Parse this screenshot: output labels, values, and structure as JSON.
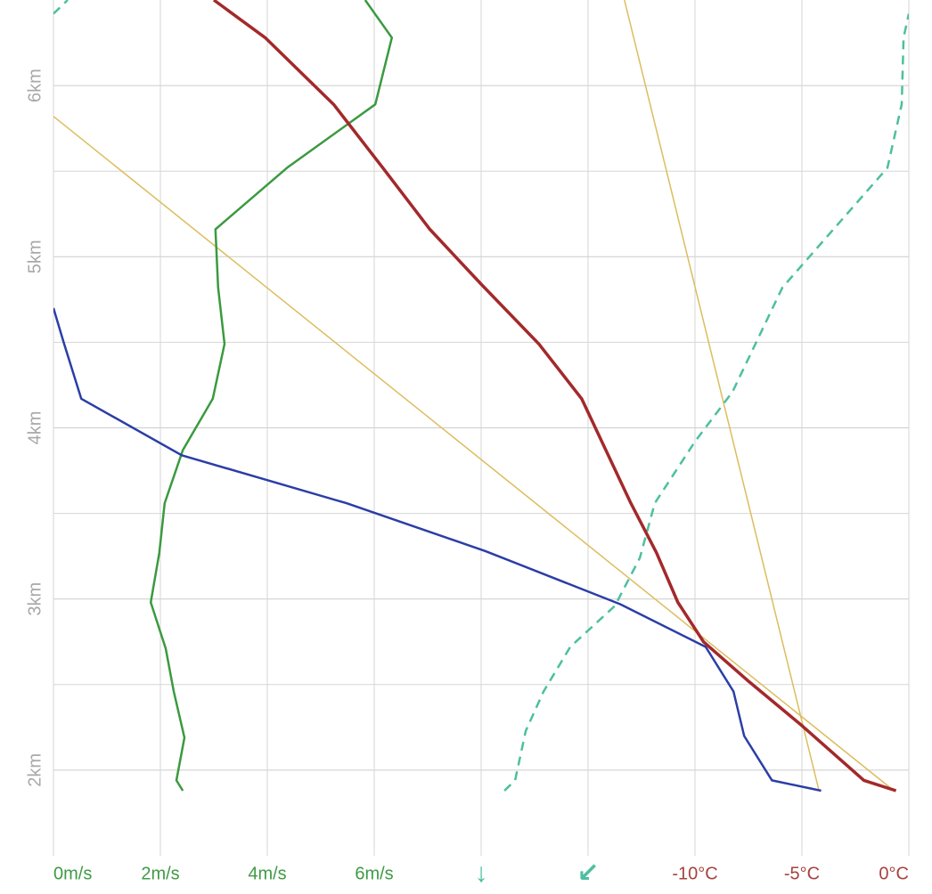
{
  "chart_data": {
    "type": "line",
    "ylim": [
      1.5,
      6.5
    ],
    "yticks": [
      {
        "value": 2,
        "label": "2km"
      },
      {
        "value": 3,
        "label": "3km"
      },
      {
        "value": 4,
        "label": "4km"
      },
      {
        "value": 5,
        "label": "5km"
      },
      {
        "value": 6,
        "label": "6km"
      }
    ],
    "ygrid": [
      2.5,
      3.5,
      4.5,
      5.5
    ],
    "grid": true,
    "xaxes": {
      "speed": {
        "xlim": [
          0,
          16
        ],
        "color": "#3f9a45",
        "xticks": [
          {
            "value": 0,
            "label": "0m/s"
          },
          {
            "value": 2,
            "label": "2m/s"
          },
          {
            "value": 4,
            "label": "4m/s"
          },
          {
            "value": 6,
            "label": "6m/s"
          }
        ],
        "xgrid": [
          0,
          2,
          4,
          6,
          8,
          10,
          12,
          14,
          16
        ]
      },
      "direction": {
        "xlim": [
          -180,
          180
        ],
        "color": "#4dbf9f",
        "xticks": [
          {
            "value": 0,
            "label": "↓"
          },
          {
            "value": 45,
            "label": "↙"
          }
        ]
      },
      "temperature": {
        "xlim": [
          -40,
          0
        ],
        "color": "#a6423f",
        "xticks": [
          {
            "value": -10,
            "label": "-10°C"
          },
          {
            "value": -5,
            "label": "-5°C"
          },
          {
            "value": 0,
            "label": "0°C"
          }
        ]
      }
    },
    "series": [
      {
        "axis": "temperature",
        "color": "#dcbd5e",
        "width": 1.5,
        "values": [
          -0.8,
          -40
        ],
        "altitudes": [
          1.89,
          5.82
        ]
      },
      {
        "axis": "temperature",
        "color": "#dcbd5e",
        "width": 1.5,
        "values": [
          -4.2,
          -13.3
        ],
        "altitudes": [
          1.88,
          6.5
        ]
      },
      {
        "axis": "direction",
        "color": "#4dbf9f",
        "width": 2.5,
        "dashed": true,
        "values": [
          9.8,
          14.3,
          18.8,
          26.3,
          37.5,
          56.3,
          66.8,
          73.1,
          90,
          105.8,
          126.8,
          171,
          177,
          177.8,
          180,
          null,
          -180,
          -174
        ],
        "altitudes": [
          1.88,
          1.94,
          2.23,
          2.46,
          2.72,
          2.96,
          3.24,
          3.56,
          3.92,
          4.21,
          4.82,
          5.52,
          5.89,
          6.28,
          6.42,
          null,
          6.42,
          6.5
        ]
      },
      {
        "axis": "speed",
        "color": "#3a9a3f",
        "width": 2.5,
        "values": [
          2.42,
          2.3,
          2.45,
          2.25,
          2.1,
          1.82,
          1.98,
          2.08,
          2.42,
          2.98,
          3.2,
          3.08,
          3.03,
          4.37,
          6.02,
          6.33,
          5.83
        ],
        "altitudes": [
          1.88,
          1.94,
          2.19,
          2.46,
          2.71,
          2.98,
          3.27,
          3.56,
          3.87,
          4.17,
          4.49,
          4.82,
          5.16,
          5.52,
          5.89,
          6.28,
          6.5
        ]
      },
      {
        "axis": "temperature",
        "color": "#2b3ea6",
        "width": 2.5,
        "values": [
          -4.1,
          -6.4,
          -7.7,
          -8.2,
          -9.5,
          -13.5,
          -19.8,
          -26.3,
          -34,
          -38.7,
          -39.5,
          -40
        ],
        "altitudes": [
          1.88,
          1.94,
          2.2,
          2.46,
          2.72,
          2.97,
          3.28,
          3.56,
          3.84,
          4.17,
          4.49,
          4.7
        ]
      },
      {
        "axis": "temperature",
        "color": "#a3292b",
        "width": 3.5,
        "values": [
          -0.6,
          -2.1,
          -5,
          -7.5,
          -9.6,
          -10.8,
          -11.8,
          -13,
          -15.3,
          -17.3,
          -20,
          -22.4,
          -24.6,
          -26.9,
          -30.1,
          -32.5
        ],
        "altitudes": [
          1.88,
          1.94,
          2.26,
          2.52,
          2.75,
          2.98,
          3.27,
          3.56,
          4.17,
          4.49,
          4.84,
          5.16,
          5.52,
          5.89,
          6.28,
          6.5
        ]
      }
    ]
  }
}
